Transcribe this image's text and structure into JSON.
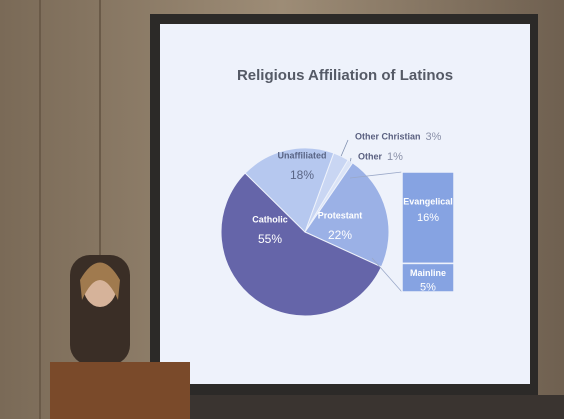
{
  "chart_data": {
    "type": "pie",
    "title": "Religious Affiliation of Latinos",
    "categories": [
      "Other Christian",
      "Other",
      "Protestant",
      "Catholic",
      "Unaffiliated"
    ],
    "values": [
      3,
      1,
      22,
      55,
      18
    ],
    "value_labels": [
      "3%",
      "1%",
      "22%",
      "55%",
      "18%"
    ],
    "colors": [
      "#c9d6f3",
      "#dbe4f7",
      "#9bb1e6",
      "#6565a9",
      "#b6c8ef"
    ],
    "breakdown": {
      "categories": [
        "Evangelical",
        "Mainline"
      ],
      "values": [
        16,
        5
      ],
      "value_labels": [
        "16%",
        "5%"
      ],
      "color": "#86a3e2"
    }
  }
}
